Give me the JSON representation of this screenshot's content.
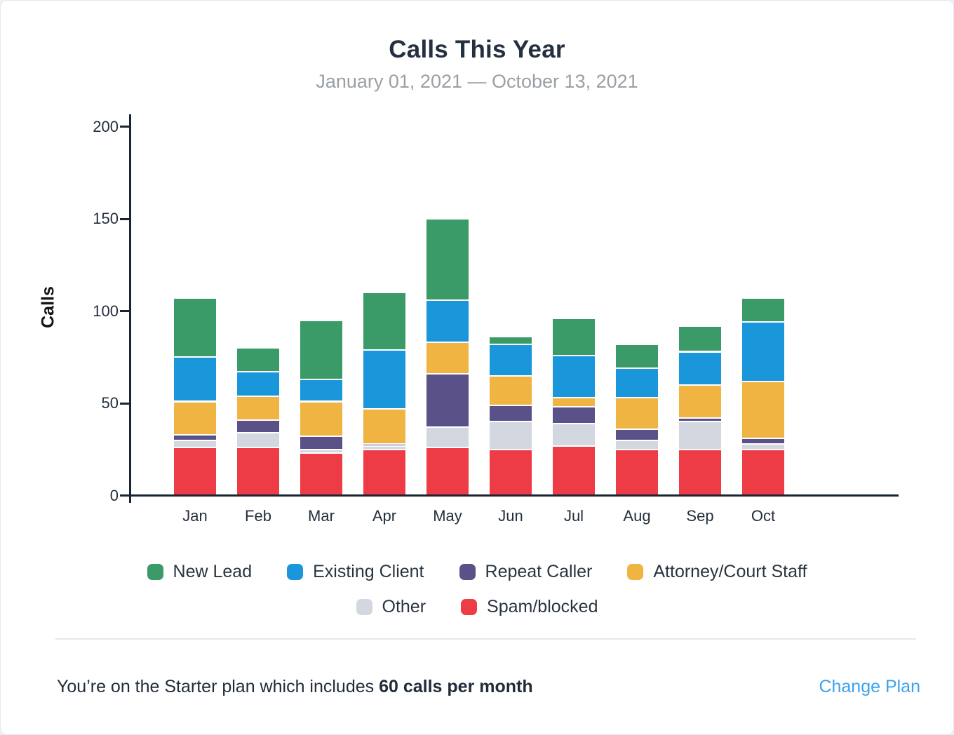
{
  "header": {
    "title": "Calls This Year",
    "subtitle": "January 01, 2021 — October 13,  2021"
  },
  "chart_data": {
    "type": "bar",
    "stacked": true,
    "title": "Calls This Year",
    "subtitle": "January 01, 2021 — October 13,  2021",
    "ylabel": "Calls",
    "xlabel": "",
    "ylim": [
      0,
      200
    ],
    "yticks": [
      0,
      50,
      100,
      150,
      200
    ],
    "grid": false,
    "legend_position": "bottom",
    "categories": [
      "Jan",
      "Feb",
      "Mar",
      "Apr",
      "May",
      "Jun",
      "Jul",
      "Aug",
      "Sep",
      "Oct"
    ],
    "series": [
      {
        "name": "Spam/blocked",
        "color": "#ee3c46",
        "values": [
          25,
          25,
          22,
          24,
          25,
          24,
          26,
          24,
          24,
          24
        ]
      },
      {
        "name": "Other",
        "color": "#d3d7df",
        "values": [
          4,
          8,
          2,
          2,
          11,
          15,
          12,
          5,
          15,
          3
        ]
      },
      {
        "name": "Repeat Caller",
        "color": "#5b5189",
        "values": [
          3,
          7,
          7,
          1,
          29,
          9,
          9,
          6,
          2,
          3
        ]
      },
      {
        "name": "Attorney/Court Staff",
        "color": "#efb441",
        "values": [
          18,
          13,
          19,
          19,
          17,
          16,
          5,
          17,
          18,
          31
        ]
      },
      {
        "name": "Existing Client",
        "color": "#1a96db",
        "values": [
          24,
          13,
          12,
          32,
          23,
          17,
          23,
          16,
          18,
          32
        ]
      },
      {
        "name": "New Lead",
        "color": "#3a9a68",
        "values": [
          32,
          13,
          32,
          31,
          44,
          4,
          20,
          13,
          14,
          13
        ]
      }
    ],
    "totals": [
      106,
      79,
      94,
      109,
      149,
      85,
      95,
      81,
      91,
      106
    ],
    "legend_rows": [
      [
        "New Lead",
        "Existing Client",
        "Repeat Caller",
        "Attorney/Court Staff"
      ],
      [
        "Other",
        "Spam/blocked"
      ]
    ]
  },
  "footer": {
    "plan_text_normal": "You’re on the Starter plan which includes ",
    "plan_text_bold": "60 calls per month",
    "change_plan_label": "Change Plan"
  },
  "colors": {
    "axis": "#1b2531",
    "title_text": "#243040",
    "subtitle_text": "#9aa0a5",
    "link": "#3aa2ed"
  }
}
